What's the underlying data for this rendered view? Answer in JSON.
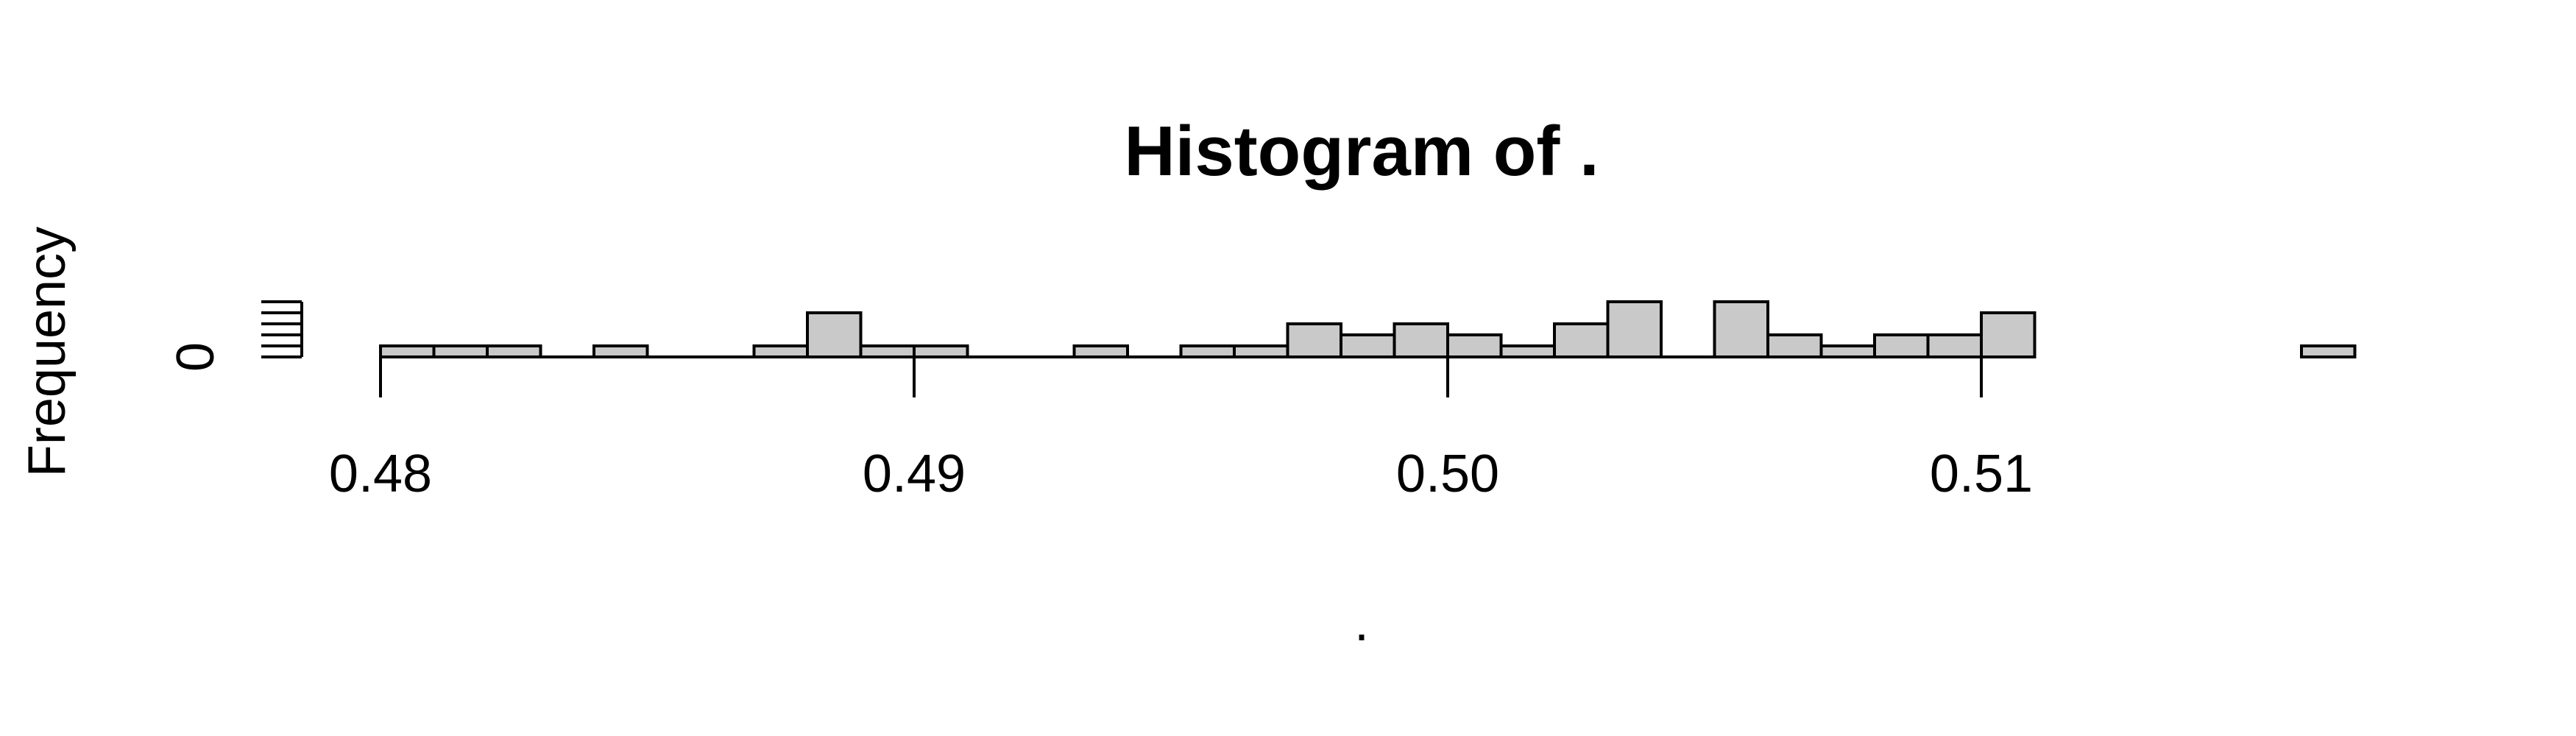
{
  "chart_data": {
    "type": "bar",
    "title": "Histogram of .",
    "xlabel": ".",
    "ylabel": "Frequency",
    "xlim": [
      0.48,
      0.5168
    ],
    "ylim": [
      0,
      5
    ],
    "grid": false,
    "colors": {
      "bar_fill": "#c9c9c9",
      "bar_stroke": "#000000",
      "text": "#000000",
      "background": "#ffffff"
    },
    "x_ticks": [
      {
        "value": 0.48,
        "label": "0.48"
      },
      {
        "value": 0.49,
        "label": "0.49"
      },
      {
        "value": 0.5,
        "label": "0.50"
      },
      {
        "value": 0.51,
        "label": "0.51"
      }
    ],
    "y_ticks": [
      {
        "value": 0,
        "label": "0"
      },
      {
        "value": 1,
        "label": ""
      },
      {
        "value": 2,
        "label": ""
      },
      {
        "value": 3,
        "label": ""
      },
      {
        "value": 4,
        "label": ""
      },
      {
        "value": 5,
        "label": ""
      }
    ],
    "bin_width": 0.001,
    "bins": [
      {
        "start": 0.48,
        "count": 1
      },
      {
        "start": 0.481,
        "count": 1
      },
      {
        "start": 0.482,
        "count": 1
      },
      {
        "start": 0.483,
        "count": 0
      },
      {
        "start": 0.484,
        "count": 1
      },
      {
        "start": 0.485,
        "count": 0
      },
      {
        "start": 0.486,
        "count": 0
      },
      {
        "start": 0.487,
        "count": 1
      },
      {
        "start": 0.488,
        "count": 4
      },
      {
        "start": 0.489,
        "count": 1
      },
      {
        "start": 0.49,
        "count": 1
      },
      {
        "start": 0.491,
        "count": 0
      },
      {
        "start": 0.492,
        "count": 0
      },
      {
        "start": 0.493,
        "count": 1
      },
      {
        "start": 0.494,
        "count": 0
      },
      {
        "start": 0.495,
        "count": 1
      },
      {
        "start": 0.496,
        "count": 1
      },
      {
        "start": 0.497,
        "count": 3
      },
      {
        "start": 0.498,
        "count": 2
      },
      {
        "start": 0.499,
        "count": 3
      },
      {
        "start": 0.5,
        "count": 2
      },
      {
        "start": 0.501,
        "count": 1
      },
      {
        "start": 0.502,
        "count": 3
      },
      {
        "start": 0.503,
        "count": 5
      },
      {
        "start": 0.504,
        "count": 0
      },
      {
        "start": 0.505,
        "count": 5
      },
      {
        "start": 0.506,
        "count": 2
      },
      {
        "start": 0.507,
        "count": 1
      },
      {
        "start": 0.508,
        "count": 2
      },
      {
        "start": 0.509,
        "count": 2
      },
      {
        "start": 0.51,
        "count": 4
      },
      {
        "start": 0.511,
        "count": 0
      },
      {
        "start": 0.512,
        "count": 0
      },
      {
        "start": 0.513,
        "count": 0
      },
      {
        "start": 0.514,
        "count": 0
      },
      {
        "start": 0.515,
        "count": 0
      },
      {
        "start": 0.516,
        "count": 1
      }
    ]
  }
}
